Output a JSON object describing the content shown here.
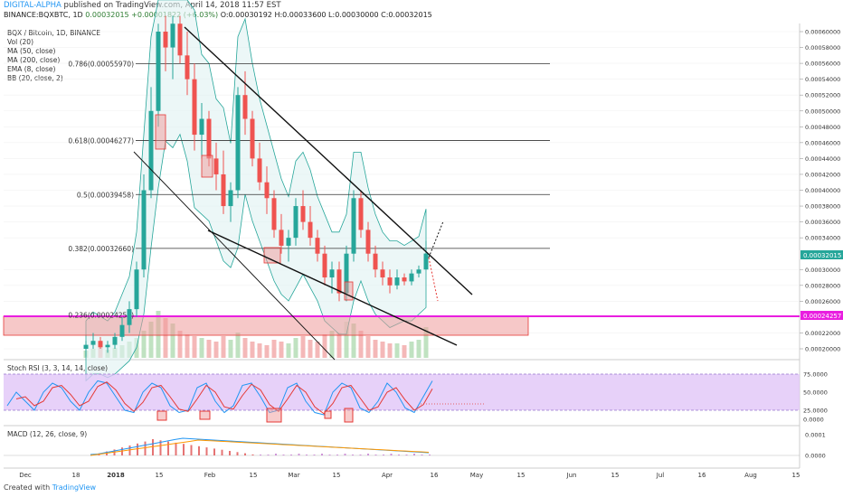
{
  "header": {
    "author": "DIGITAL-ALPHA",
    "published": "published on TradingView.com, April 14, 2018 11:57 EST"
  },
  "quote": {
    "symbol": "BINANCE:BQXBTC, 1D",
    "last": "0.00032015",
    "change": "+0.00001822 (+6.03%)",
    "open": "O:0.00030192",
    "high": "H:0.00033600",
    "low": "L:0.00030000",
    "close": "C:0.00032015"
  },
  "indicators": [
    "BQX / Bitcoin, 1D, BINANCE",
    "Vol (20)",
    "MA (50, close)",
    "MA (200, close)",
    "EMA (8, close)",
    "BB (20, close, 2)"
  ],
  "fib_labels": [
    {
      "text": "0.786(0.00055970)",
      "price": 0.0005597
    },
    {
      "text": "0.618(0.00046277)",
      "price": 0.00046277
    },
    {
      "text": "0.5(0.00039458)",
      "price": 0.00039458
    },
    {
      "text": "0.382(0.00032660)",
      "price": 0.0003266
    },
    {
      "text": "0.236(0.00024257)",
      "price": 0.00024257
    }
  ],
  "price_axis": [
    "0.00060000",
    "0.00058000",
    "0.00056000",
    "0.00054000",
    "0.00052000",
    "0.00050000",
    "0.00048000",
    "0.00046000",
    "0.00044000",
    "0.00042000",
    "0.00040000",
    "0.00038000",
    "0.00036000",
    "0.00034000",
    "0.00030000",
    "0.00028000",
    "0.00026000",
    "0.00022000",
    "0.00020000"
  ],
  "price_badges": {
    "current": "0.00032015",
    "resistance": "0.00024257"
  },
  "stoch_rsi": {
    "label": "Stoch RSI (3, 3, 14, 14, close)",
    "ticks": [
      "75.0000",
      "50.0000",
      "25.0000",
      "0.0000"
    ]
  },
  "macd": {
    "label": "MACD (12, 26, close, 9)",
    "ticks": [
      "0.0001",
      "0.0000"
    ]
  },
  "time_axis": [
    "Dec",
    "18",
    "2018",
    "15",
    "Feb",
    "15",
    "Mar",
    "15",
    "Apr",
    "16",
    "May",
    "15",
    "Jun",
    "15",
    "Jul",
    "16",
    "Aug",
    "15"
  ],
  "footer": {
    "created_with": "Created with",
    "brand": "TradingView"
  },
  "colors": {
    "up": "#26a69a",
    "down": "#ef5350",
    "magenta": "#e91ee0",
    "stoch_fill": "#e1c6f7"
  },
  "chart_data": {
    "type": "candlestick",
    "title": "BQX / Bitcoin, 1D, BINANCE",
    "ylim": [
      0.00019,
      0.000615
    ],
    "candles": [
      [
        0.0002,
        0.00021,
        0.00019,
        0.000205
      ],
      [
        0.000205,
        0.00022,
        0.0002,
        0.00021
      ],
      [
        0.00021,
        0.000215,
        0.0002,
        0.000202
      ],
      [
        0.000202,
        0.00021,
        0.000195,
        0.000205
      ],
      [
        0.000205,
        0.00022,
        0.0002,
        0.000215
      ],
      [
        0.000215,
        0.00024,
        0.00021,
        0.00023
      ],
      [
        0.00023,
        0.00026,
        0.00022,
        0.00025
      ],
      [
        0.00025,
        0.00031,
        0.00024,
        0.0003
      ],
      [
        0.0003,
        0.00042,
        0.00029,
        0.0004
      ],
      [
        0.0004,
        0.00053,
        0.00039,
        0.0005
      ],
      [
        0.0005,
        0.00061,
        0.00048,
        0.0006
      ],
      [
        0.0006,
        0.00062,
        0.00055,
        0.00058
      ],
      [
        0.00058,
        0.00062,
        0.00054,
        0.00061
      ],
      [
        0.00061,
        0.00062,
        0.00056,
        0.00057
      ],
      [
        0.00057,
        0.0006,
        0.00052,
        0.00054
      ],
      [
        0.00054,
        0.00056,
        0.00045,
        0.00047
      ],
      [
        0.00047,
        0.00051,
        0.00044,
        0.00049
      ],
      [
        0.00049,
        0.0005,
        0.00043,
        0.00044
      ],
      [
        0.00044,
        0.00046,
        0.0004,
        0.00042
      ],
      [
        0.00042,
        0.00045,
        0.00037,
        0.00038
      ],
      [
        0.00038,
        0.00041,
        0.00036,
        0.0004
      ],
      [
        0.0004,
        0.00053,
        0.00039,
        0.00052
      ],
      [
        0.00052,
        0.00055,
        0.00047,
        0.00049
      ],
      [
        0.00049,
        0.0005,
        0.00043,
        0.00044
      ],
      [
        0.00044,
        0.00046,
        0.0004,
        0.00041
      ],
      [
        0.00041,
        0.00043,
        0.00037,
        0.00039
      ],
      [
        0.00039,
        0.0004,
        0.00034,
        0.00035
      ],
      [
        0.00035,
        0.00037,
        0.00032,
        0.00033
      ],
      [
        0.00033,
        0.00035,
        0.00031,
        0.00034
      ],
      [
        0.00034,
        0.00039,
        0.00033,
        0.00038
      ],
      [
        0.00038,
        0.0004,
        0.00035,
        0.00036
      ],
      [
        0.00036,
        0.00038,
        0.00033,
        0.00034
      ],
      [
        0.00034,
        0.00035,
        0.00031,
        0.00032
      ],
      [
        0.00032,
        0.00033,
        0.00028,
        0.00029
      ],
      [
        0.00029,
        0.00031,
        0.00027,
        0.0003
      ],
      [
        0.0003,
        0.00031,
        0.00026,
        0.00027
      ],
      [
        0.00027,
        0.00033,
        0.00026,
        0.00032
      ],
      [
        0.00032,
        0.0004,
        0.00031,
        0.00039
      ],
      [
        0.00039,
        0.0004,
        0.00034,
        0.00035
      ],
      [
        0.00035,
        0.00036,
        0.00031,
        0.00032
      ],
      [
        0.00032,
        0.00033,
        0.00029,
        0.0003
      ],
      [
        0.0003,
        0.00031,
        0.00028,
        0.00029
      ],
      [
        0.00029,
        0.0003,
        0.00027,
        0.00028
      ],
      [
        0.00028,
        0.0003,
        0.000275,
        0.00029
      ],
      [
        0.00029,
        0.000295,
        0.00028,
        0.000285
      ],
      [
        0.000285,
        0.0003,
        0.00028,
        0.000295
      ],
      [
        0.000295,
        0.000305,
        0.00029,
        0.0003
      ],
      [
        0.0003,
        0.000336,
        0.0003,
        0.00032015
      ]
    ],
    "projection": {
      "up_target": 0.000362,
      "down_target": 0.000262
    }
  }
}
